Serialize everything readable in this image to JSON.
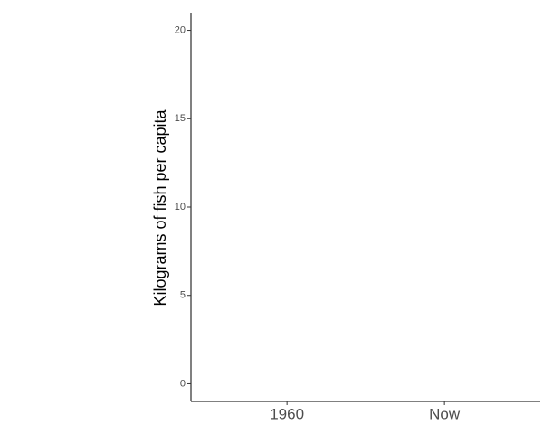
{
  "chart_data": {
    "type": "bar",
    "ylabel": "Kilograms of fish per capita",
    "categories": [
      "1960",
      "Now"
    ],
    "ylim": [
      -1,
      21
    ],
    "yticks": [
      0,
      5,
      10,
      15,
      20
    ],
    "grid": false
  }
}
